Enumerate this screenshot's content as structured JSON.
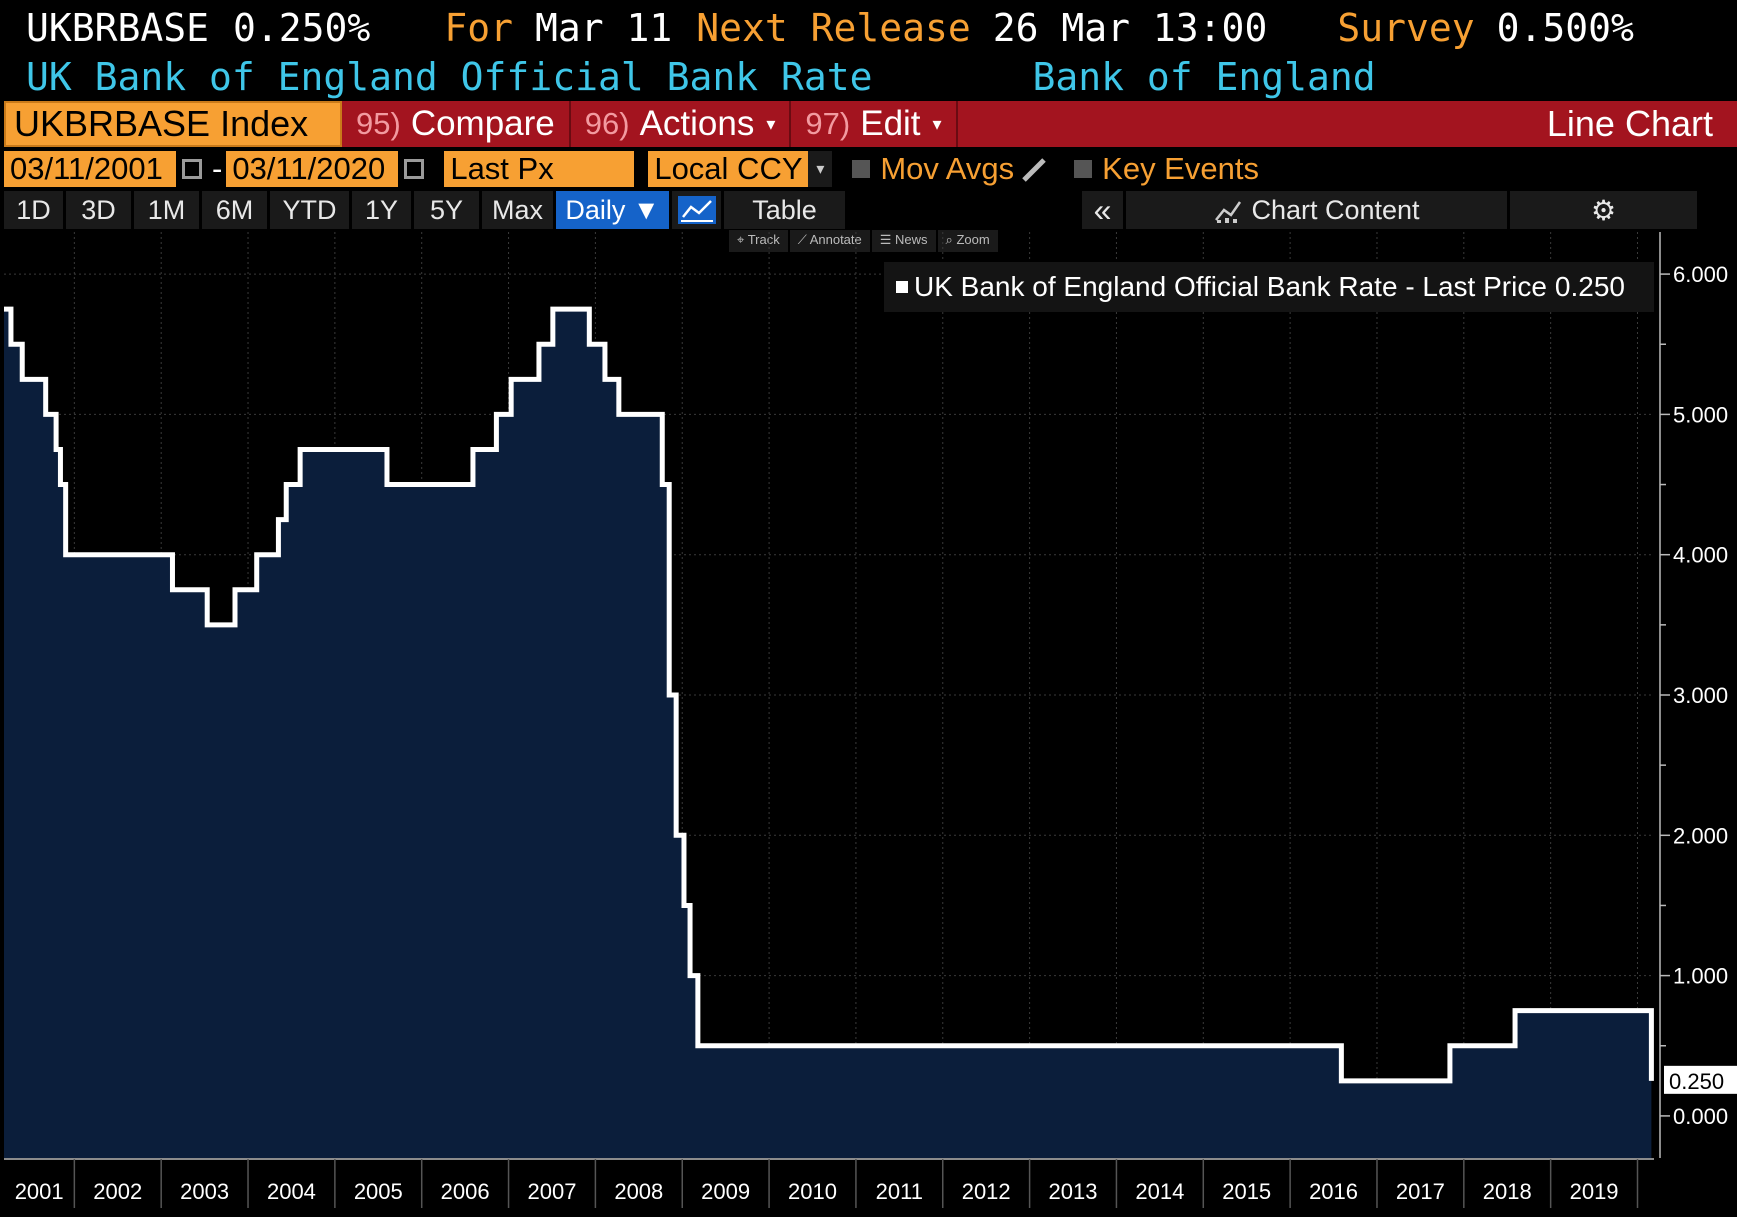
{
  "header": {
    "ticker": "UKBRBASE",
    "last_value": "0.250%",
    "for_label": "For",
    "for_date": "Mar 11",
    "next_release_label": "Next Release",
    "next_release_value": "26 Mar 13:00",
    "survey_label": "Survey",
    "survey_value": "0.500%",
    "description": "UK Bank of England Official Bank Rate",
    "source": "Bank of England"
  },
  "toolbar": {
    "security": "UKBRBASE Index",
    "compare_num": "95)",
    "compare_label": "Compare",
    "actions_num": "96)",
    "actions_label": "Actions",
    "edit_num": "97)",
    "edit_label": "Edit",
    "chart_type": "Line Chart",
    "dropdown_glyph": "▾"
  },
  "daterow": {
    "start_date": "03/11/2001",
    "separator": "-",
    "end_date": "03/11/2020",
    "field": "Last Px",
    "currency": "Local CCY",
    "mov_avgs": "Mov Avgs",
    "key_events": "Key Events"
  },
  "periods": {
    "buttons": [
      "1D",
      "3D",
      "1M",
      "6M",
      "YTD",
      "1Y",
      "5Y",
      "Max"
    ],
    "frequency": "Daily ▼",
    "table": "Table",
    "collapse": "«",
    "chart_content": "Chart Content",
    "settings_glyph": "⚙"
  },
  "minibar": {
    "items": [
      "⌖ Track",
      "⟋ Annotate",
      "☰ News",
      "⌕ Zoom"
    ]
  },
  "legend": {
    "label": "UK Bank of England Official Bank Rate - Last Price",
    "value": "0.250"
  },
  "colors": {
    "line": "#ffffff",
    "fill": "#0b1e3b",
    "grid": "#3a3a3a",
    "orange": "#f7a033",
    "cyan": "#3fc6e8",
    "red": "#a3141f"
  },
  "chart_data": {
    "type": "line",
    "title": "UK Bank of England Official Bank Rate - Last Price",
    "series": [
      {
        "name": "UK Bank of England Official Bank Rate - Last Price",
        "points": [
          [
            2001.19,
            5.75
          ],
          [
            2001.27,
            5.5
          ],
          [
            2001.4,
            5.25
          ],
          [
            2001.67,
            5.0
          ],
          [
            2001.79,
            4.75
          ],
          [
            2001.84,
            4.5
          ],
          [
            2001.9,
            4.0
          ],
          [
            2003.13,
            3.75
          ],
          [
            2003.53,
            3.5
          ],
          [
            2003.85,
            3.75
          ],
          [
            2004.1,
            4.0
          ],
          [
            2004.35,
            4.25
          ],
          [
            2004.44,
            4.5
          ],
          [
            2004.6,
            4.75
          ],
          [
            2005.6,
            4.5
          ],
          [
            2006.59,
            4.75
          ],
          [
            2006.86,
            5.0
          ],
          [
            2007.03,
            5.25
          ],
          [
            2007.35,
            5.5
          ],
          [
            2007.51,
            5.75
          ],
          [
            2007.93,
            5.5
          ],
          [
            2008.11,
            5.25
          ],
          [
            2008.27,
            5.0
          ],
          [
            2008.77,
            4.5
          ],
          [
            2008.85,
            3.0
          ],
          [
            2008.93,
            2.0
          ],
          [
            2009.02,
            1.5
          ],
          [
            2009.09,
            1.0
          ],
          [
            2009.18,
            0.5
          ],
          [
            2016.59,
            0.25
          ],
          [
            2017.84,
            0.5
          ],
          [
            2018.59,
            0.75
          ],
          [
            2020.16,
            0.25
          ]
        ]
      }
    ],
    "x_ticks": [
      "2001",
      "2002",
      "2003",
      "2004",
      "2005",
      "2006",
      "2007",
      "2008",
      "2009",
      "2010",
      "2011",
      "2012",
      "2013",
      "2014",
      "2015",
      "2016",
      "2017",
      "2018",
      "2019"
    ],
    "y_ticks": [
      "6.000",
      "5.000",
      "4.000",
      "3.000",
      "2.000",
      "1.000",
      "0.000"
    ],
    "last_price_label": "0.250",
    "xlim": [
      2001.19,
      2020.19
    ],
    "ylim": [
      -0.3,
      6.3
    ],
    "grid": true,
    "legend_position": "top-right"
  }
}
